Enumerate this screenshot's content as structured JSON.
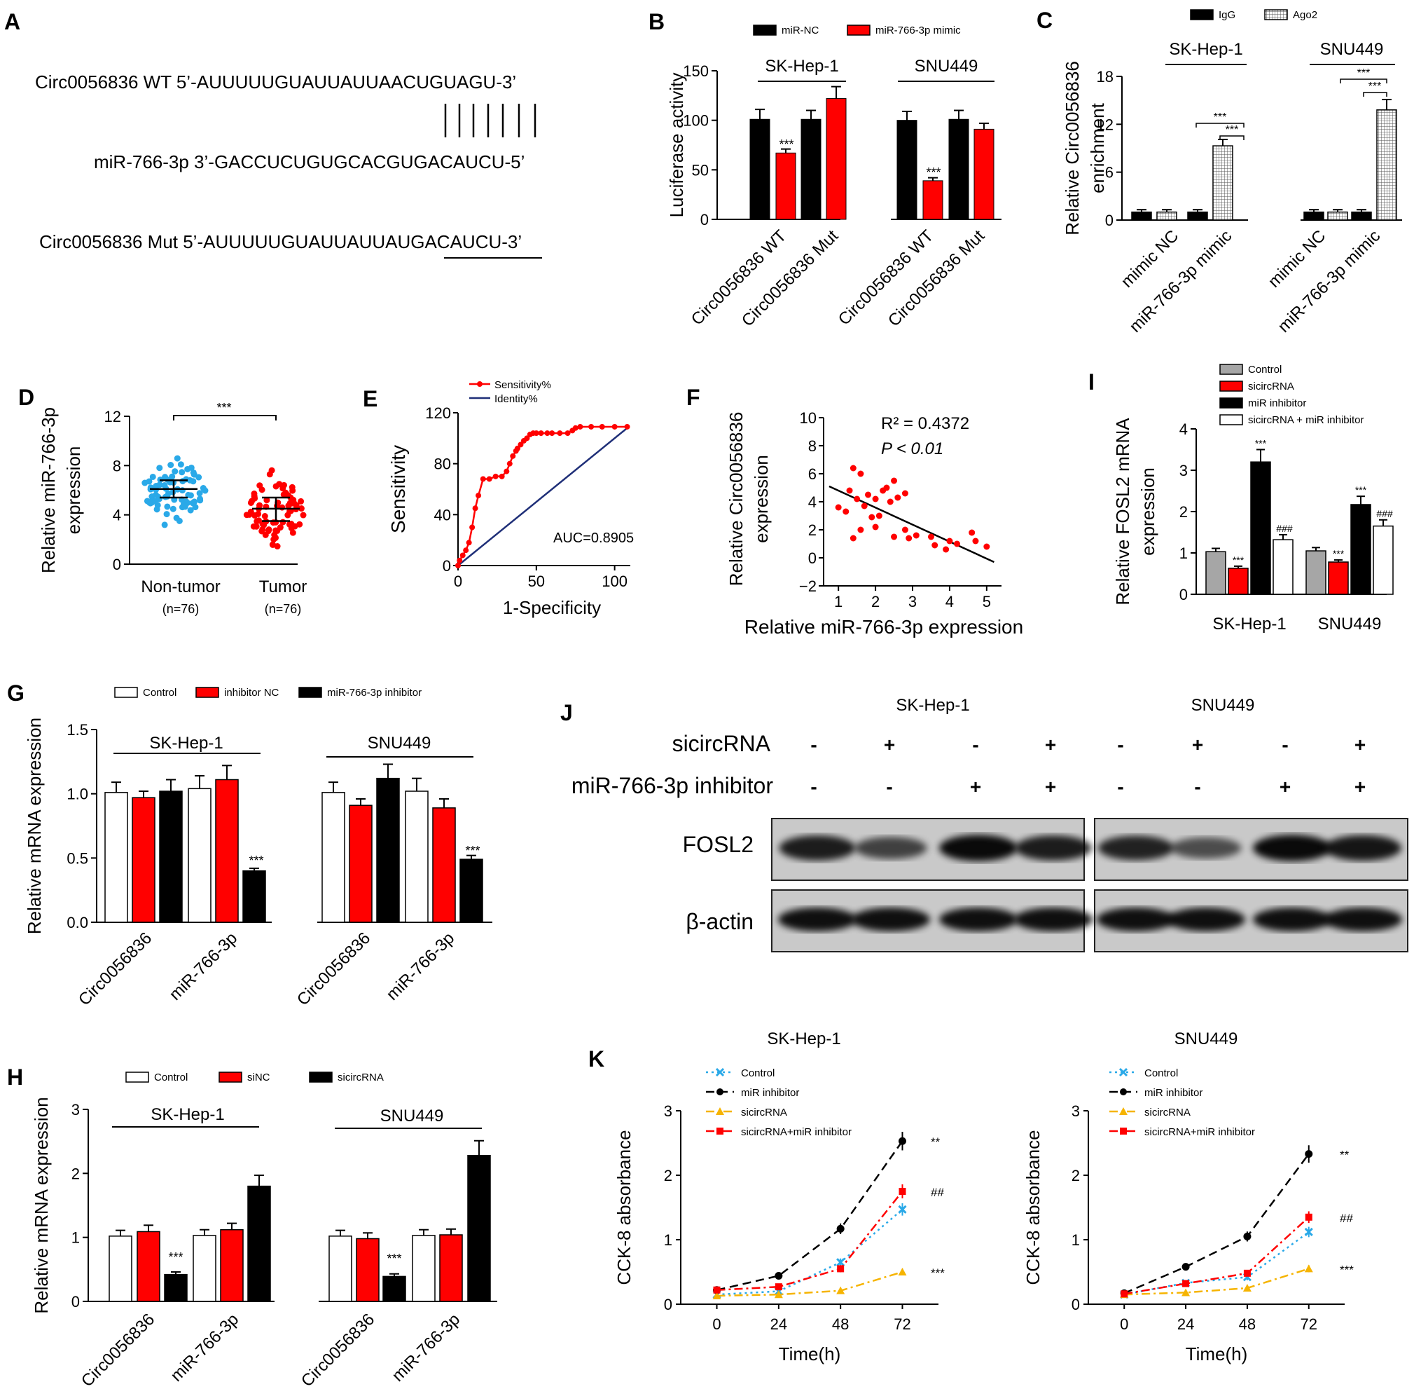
{
  "colors": {
    "red": "#ff0000",
    "black": "#000000",
    "blue": "#2aa9e8",
    "gold": "#f6b400",
    "gray": "#a6a6a6",
    "navy": "#1f2f78",
    "white": "#ffffff"
  },
  "panel_labels": {
    "A": "A",
    "B": "B",
    "C": "C",
    "D": "D",
    "E": "E",
    "F": "F",
    "G": "G",
    "H": "H",
    "I": "I",
    "J": "J",
    "K": "K"
  },
  "panelA": {
    "wt": "Circ0056836 WT  5’-AUUUUUGUAUUAUUAACUGUAGU-3’",
    "mir": "miR-766-3p 3’-GACCUCUGUGCACGUGACAUCU-5’",
    "mut": "Circ0056836 Mut 5’-AUUUUUGUAUUAUUAUGACAUCU-3’"
  },
  "chart_data": [
    {
      "panel": "B",
      "type": "bar",
      "ylabel": "Luciferase activity",
      "yticks": [
        0,
        50,
        100,
        150
      ],
      "ylim": [
        0,
        150
      ],
      "groups": [
        "SK-Hep-1",
        "SNU449"
      ],
      "categories": [
        "Circ0056836 WT",
        "Circ0056836 Mut",
        "Circ0056836 WT",
        "Circ0056836 Mut"
      ],
      "series": [
        {
          "name": "miR-NC",
          "values": [
            101,
            101,
            100,
            101
          ],
          "errors": [
            10,
            9,
            9,
            9
          ]
        },
        {
          "name": "miR-766-3p mimic",
          "values": [
            67,
            122,
            39,
            91
          ],
          "errors": [
            4,
            12,
            3,
            6
          ]
        }
      ],
      "annotations": [
        "***",
        "***"
      ]
    },
    {
      "panel": "C",
      "type": "bar",
      "ylabel": "Relative Circ0056836 enrichment",
      "yticks": [
        0,
        6,
        12,
        18
      ],
      "ylim": [
        0,
        18
      ],
      "groups": [
        "SK-Hep-1",
        "SNU449"
      ],
      "categories": [
        "mimic NC",
        "miR-766-3p mimic",
        "mimic NC",
        "miR-766-3p mimic"
      ],
      "series": [
        {
          "name": "IgG",
          "values": [
            1,
            1,
            1,
            1
          ],
          "errors": [
            0.3,
            0.3,
            0.3,
            0.3
          ]
        },
        {
          "name": "Ago2",
          "values": [
            1,
            9.3,
            1,
            13.8
          ],
          "errors": [
            0.3,
            0.8,
            0.3,
            1.3
          ]
        }
      ],
      "annotations": [
        "***",
        "***",
        "***",
        "***"
      ]
    },
    {
      "panel": "D",
      "type": "scatter",
      "ylabel": "Relative miR-766-3p expression",
      "yticks": [
        0,
        4,
        8,
        12
      ],
      "ylim": [
        0,
        12
      ],
      "categories": [
        "Non-tumor",
        "Tumor"
      ],
      "n_labels": [
        "(n=76)",
        "(n=76)"
      ],
      "medians": [
        6.1,
        4.5
      ],
      "iqr": [
        [
          5.4,
          6.8
        ],
        [
          3.5,
          5.4
        ]
      ],
      "annotation": "***"
    },
    {
      "panel": "E",
      "type": "line",
      "xlabel": "1-Specificity",
      "ylabel": "Sensitivity",
      "xticks": [
        0,
        50,
        100
      ],
      "yticks": [
        0,
        40,
        80,
        120
      ],
      "xlim": [
        0,
        110
      ],
      "ylim": [
        0,
        120
      ],
      "series": [
        {
          "name": "Sensitivity%",
          "x": [
            0,
            1,
            3,
            5,
            7,
            9,
            11,
            13,
            16,
            20,
            24,
            28,
            31,
            33,
            35,
            37,
            38,
            40,
            42,
            44,
            46,
            48,
            50,
            53,
            57,
            60,
            65,
            70,
            73,
            75,
            78,
            85,
            92,
            100,
            108
          ],
          "y": [
            0,
            4,
            8,
            12,
            18,
            30,
            45,
            55,
            68,
            68,
            70,
            70,
            74,
            80,
            86,
            90,
            92,
            95,
            98,
            100,
            103,
            104,
            104,
            104,
            104,
            104,
            104,
            104,
            106,
            108,
            109,
            109,
            109,
            109,
            109
          ]
        },
        {
          "name": "Identity%",
          "x": [
            0,
            108
          ],
          "y": [
            0,
            108
          ]
        }
      ],
      "annotation": "AUC=0.8905"
    },
    {
      "panel": "F",
      "type": "scatter",
      "xlabel": "Relative miR-766-3p expression",
      "ylabel": "Relative Circ0056836 expression",
      "xticks": [
        1,
        2,
        3,
        4,
        5
      ],
      "yticks": [
        -2,
        0,
        2,
        4,
        6,
        8,
        10
      ],
      "xlim": [
        0.6,
        5.4
      ],
      "ylim": [
        -2,
        10
      ],
      "points": [
        [
          1.4,
          6.4
        ],
        [
          1.6,
          6.0
        ],
        [
          2.5,
          5.5
        ],
        [
          2.8,
          4.6
        ],
        [
          1.3,
          4.8
        ],
        [
          2.2,
          4.8
        ],
        [
          2.3,
          5.0
        ],
        [
          1.8,
          4.5
        ],
        [
          1.5,
          4.2
        ],
        [
          2.6,
          4.3
        ],
        [
          2.0,
          4.2
        ],
        [
          1.7,
          3.7
        ],
        [
          2.4,
          4.0
        ],
        [
          1.0,
          3.6
        ],
        [
          1.2,
          3.3
        ],
        [
          2.1,
          3.0
        ],
        [
          1.9,
          2.9
        ],
        [
          2.0,
          2.2
        ],
        [
          1.6,
          2.0
        ],
        [
          2.8,
          2.0
        ],
        [
          2.5,
          1.5
        ],
        [
          1.4,
          1.4
        ],
        [
          3.5,
          1.5
        ],
        [
          2.9,
          1.4
        ],
        [
          4.0,
          1.2
        ],
        [
          3.1,
          1.6
        ],
        [
          3.6,
          0.9
        ],
        [
          4.6,
          1.8
        ],
        [
          4.7,
          1.2
        ],
        [
          3.9,
          0.6
        ],
        [
          4.2,
          1.0
        ],
        [
          5.0,
          0.8
        ]
      ],
      "fit": [
        [
          0.75,
          5.1
        ],
        [
          5.2,
          -0.3
        ]
      ],
      "annotations": [
        "R² = 0.4372",
        "P < 0.01"
      ]
    },
    {
      "panel": "I",
      "type": "bar",
      "ylabel": "Relative FOSL2 mRNA expression",
      "yticks": [
        0,
        1,
        2,
        3,
        4
      ],
      "ylim": [
        0,
        4
      ],
      "categories": [
        "SK-Hep-1",
        "SNU449"
      ],
      "series": [
        {
          "name": "Control",
          "values": [
            1.03,
            1.05
          ],
          "errors": [
            0.08,
            0.08
          ]
        },
        {
          "name": "sicircRNA",
          "values": [
            0.63,
            0.78
          ],
          "errors": [
            0.05,
            0.05
          ]
        },
        {
          "name": "miR inhibitor",
          "values": [
            3.2,
            2.17
          ],
          "errors": [
            0.3,
            0.2
          ]
        },
        {
          "name": "sicircRNA + miR inhibitor",
          "values": [
            1.32,
            1.65
          ],
          "errors": [
            0.12,
            0.15
          ]
        }
      ],
      "annotations": [
        "***",
        "***",
        "###",
        "***",
        "***",
        "###"
      ]
    },
    {
      "panel": "G",
      "type": "bar",
      "ylabel": "Relative mRNA expression",
      "yticks": [
        0.0,
        0.5,
        1.0,
        1.5
      ],
      "ylim": [
        0,
        1.5
      ],
      "groups": [
        "SK-Hep-1",
        "SNU449"
      ],
      "categories": [
        "Circ0056836",
        "miR-766-3p",
        "Circ0056836",
        "miR-766-3p"
      ],
      "series": [
        {
          "name": "Control",
          "values": [
            1.01,
            1.04,
            1.01,
            1.02
          ],
          "errors": [
            0.08,
            0.1,
            0.08,
            0.1
          ]
        },
        {
          "name": "inhibitor NC",
          "values": [
            0.97,
            1.11,
            0.91,
            0.89
          ],
          "errors": [
            0.05,
            0.11,
            0.05,
            0.07
          ]
        },
        {
          "name": "miR-766-3p inhibitor",
          "values": [
            1.02,
            0.4,
            1.12,
            0.49
          ],
          "errors": [
            0.09,
            0.02,
            0.11,
            0.03
          ]
        }
      ],
      "annotations": [
        "***",
        "***"
      ]
    },
    {
      "panel": "H",
      "type": "bar",
      "ylabel": "Relative mRNA expression",
      "yticks": [
        0,
        1,
        2,
        3
      ],
      "ylim": [
        0,
        3
      ],
      "groups": [
        "SK-Hep-1",
        "SNU449"
      ],
      "categories": [
        "Circ0056836",
        "miR-766-3p",
        "Circ0056836",
        "miR-766-3p"
      ],
      "series": [
        {
          "name": "Control",
          "values": [
            1.02,
            1.03,
            1.02,
            1.03
          ],
          "errors": [
            0.09,
            0.09,
            0.09,
            0.09
          ]
        },
        {
          "name": "siNC",
          "values": [
            1.09,
            1.12,
            0.98,
            1.04
          ],
          "errors": [
            0.1,
            0.1,
            0.09,
            0.09
          ]
        },
        {
          "name": "sicircRNA",
          "values": [
            0.42,
            1.8,
            0.39,
            2.28
          ],
          "errors": [
            0.04,
            0.17,
            0.04,
            0.23
          ]
        }
      ],
      "annotations": [
        "***",
        "***"
      ]
    },
    {
      "panel": "K",
      "type": "line",
      "title": "SK-Hep-1",
      "xlabel": "Time(h)",
      "ylabel": "CCK-8 absorbance",
      "x": [
        0,
        24,
        48,
        72
      ],
      "xticks": [
        0,
        24,
        48,
        72
      ],
      "yticks": [
        0,
        1,
        2,
        3
      ],
      "ylim": [
        0,
        3
      ],
      "series": [
        {
          "name": "Control",
          "values": [
            0.15,
            0.2,
            0.65,
            1.47
          ]
        },
        {
          "name": "miR inhibitor",
          "values": [
            0.22,
            0.44,
            1.17,
            2.53
          ]
        },
        {
          "name": "sicircRNA",
          "values": [
            0.13,
            0.15,
            0.21,
            0.5
          ]
        },
        {
          "name": "sicircRNA+miR inhibitor",
          "values": [
            0.22,
            0.27,
            0.55,
            1.75
          ]
        }
      ],
      "annotations": [
        "**",
        "##",
        "***"
      ]
    },
    {
      "panel": "K",
      "type": "line",
      "title": "SNU449",
      "xlabel": "Time(h)",
      "ylabel": "CCK-8 absorbance",
      "x": [
        0,
        24,
        48,
        72
      ],
      "xticks": [
        0,
        24,
        48,
        72
      ],
      "yticks": [
        0,
        1,
        2,
        3
      ],
      "ylim": [
        0,
        3
      ],
      "series": [
        {
          "name": "Control",
          "values": [
            0.15,
            0.33,
            0.42,
            1.12
          ]
        },
        {
          "name": "miR inhibitor",
          "values": [
            0.17,
            0.58,
            1.05,
            2.33
          ]
        },
        {
          "name": "sicircRNA",
          "values": [
            0.15,
            0.18,
            0.25,
            0.55
          ]
        },
        {
          "name": "sicircRNA+miR inhibitor",
          "values": [
            0.16,
            0.32,
            0.48,
            1.35
          ]
        }
      ],
      "annotations": [
        "**",
        "##",
        "***"
      ]
    }
  ],
  "panelJ": {
    "cell_lines": [
      "SK-Hep-1",
      "SNU449"
    ],
    "row_labels": [
      "sicircRNA",
      "miR-766-3p inhibitor"
    ],
    "sicircRNA": [
      "-",
      "+",
      "-",
      "+",
      "-",
      "+",
      "-",
      "+"
    ],
    "inhibitor": [
      "-",
      "-",
      "+",
      "+",
      "-",
      "-",
      "+",
      "+"
    ],
    "bands": [
      "FOSL2",
      "β-actin"
    ],
    "fosl2_intensity": [
      0.85,
      0.55,
      1.0,
      0.85,
      0.8,
      0.45,
      1.0,
      0.9
    ]
  }
}
